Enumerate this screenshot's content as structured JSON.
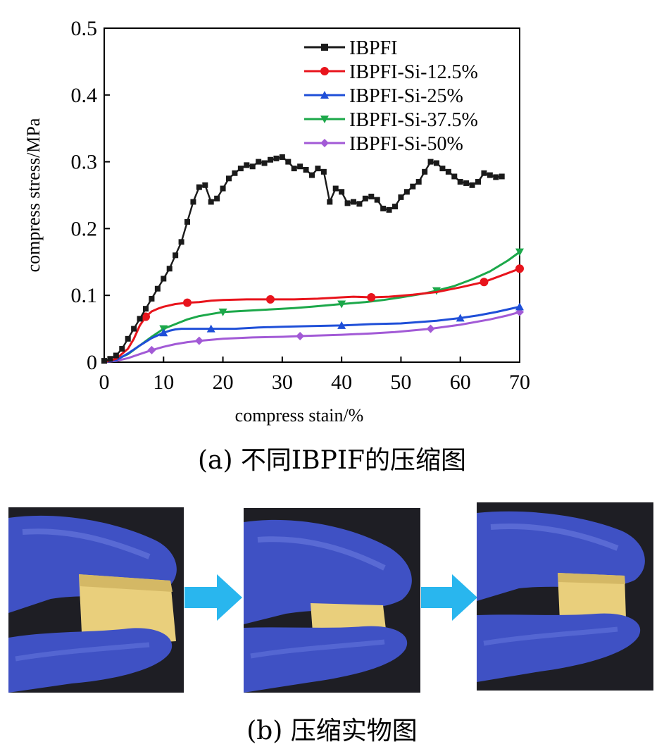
{
  "chart_data": {
    "type": "line",
    "xlabel": "compress stain/%",
    "ylabel": "compress stress/MPa",
    "xlim": [
      0,
      70
    ],
    "ylim": [
      0,
      0.5
    ],
    "xticks": [
      "0",
      "10",
      "20",
      "30",
      "40",
      "50",
      "60",
      "70"
    ],
    "yticks": [
      "0",
      "0.1",
      "0.2",
      "0.3",
      "0.4",
      "0.5"
    ],
    "grid": false,
    "legend_position": "top-right",
    "series": [
      {
        "name": "IBPFI",
        "color": "#1a1a1a",
        "marker": "square",
        "x": [
          0,
          1,
          2,
          3,
          4,
          5,
          6,
          7,
          8,
          9,
          10,
          11,
          12,
          13,
          14,
          15,
          16,
          17,
          18,
          19,
          20,
          21,
          22,
          23,
          24,
          25,
          26,
          27,
          28,
          29,
          30,
          31,
          32,
          33,
          34,
          35,
          36,
          37,
          38,
          39,
          40,
          41,
          42,
          43,
          44,
          45,
          46,
          47,
          48,
          49,
          50,
          51,
          52,
          53,
          54,
          55,
          56,
          57,
          58,
          59,
          60,
          61,
          62,
          63,
          64,
          65,
          66,
          67
        ],
        "y": [
          0.002,
          0.005,
          0.01,
          0.02,
          0.035,
          0.05,
          0.065,
          0.08,
          0.095,
          0.11,
          0.125,
          0.14,
          0.16,
          0.18,
          0.21,
          0.24,
          0.262,
          0.265,
          0.24,
          0.245,
          0.26,
          0.275,
          0.283,
          0.29,
          0.295,
          0.293,
          0.3,
          0.298,
          0.303,
          0.305,
          0.307,
          0.3,
          0.29,
          0.293,
          0.288,
          0.28,
          0.29,
          0.285,
          0.24,
          0.26,
          0.255,
          0.238,
          0.24,
          0.237,
          0.245,
          0.248,
          0.243,
          0.23,
          0.228,
          0.233,
          0.247,
          0.255,
          0.263,
          0.27,
          0.285,
          0.3,
          0.298,
          0.29,
          0.285,
          0.278,
          0.27,
          0.268,
          0.265,
          0.27,
          0.283,
          0.28,
          0.277,
          0.278
        ]
      },
      {
        "name": "IBPFI-Si-12.5%",
        "color": "#e8141c",
        "marker": "circle",
        "x": [
          0,
          2,
          4,
          5,
          6,
          7,
          8,
          9,
          10,
          12,
          14,
          16,
          18,
          20,
          24,
          28,
          32,
          36,
          40,
          42,
          45,
          48,
          52,
          56,
          60,
          64,
          67,
          70
        ],
        "y": [
          0,
          0.005,
          0.02,
          0.035,
          0.055,
          0.068,
          0.076,
          0.08,
          0.083,
          0.087,
          0.089,
          0.09,
          0.092,
          0.093,
          0.094,
          0.094,
          0.094,
          0.095,
          0.097,
          0.098,
          0.097,
          0.098,
          0.101,
          0.105,
          0.112,
          0.12,
          0.13,
          0.14
        ]
      },
      {
        "name": "IBPFI-Si-25%",
        "color": "#1f4fd8",
        "marker": "triangle-up",
        "x": [
          0,
          2,
          4,
          6,
          8,
          10,
          11,
          12,
          13,
          15,
          18,
          22,
          26,
          30,
          35,
          40,
          45,
          50,
          53,
          56,
          60,
          63,
          66,
          68,
          70
        ],
        "y": [
          0,
          0.003,
          0.013,
          0.025,
          0.036,
          0.044,
          0.047,
          0.049,
          0.05,
          0.05,
          0.05,
          0.05,
          0.052,
          0.053,
          0.054,
          0.055,
          0.057,
          0.058,
          0.06,
          0.062,
          0.066,
          0.07,
          0.075,
          0.079,
          0.083
        ]
      },
      {
        "name": "IBPFI-Si-37.5%",
        "color": "#1ca84a",
        "marker": "triangle-down",
        "x": [
          0,
          2,
          4,
          6,
          8,
          10,
          12,
          14,
          16,
          18,
          20,
          24,
          28,
          32,
          35,
          40,
          44,
          47,
          50,
          54,
          56,
          59,
          62,
          65,
          68,
          70
        ],
        "y": [
          0,
          0.004,
          0.012,
          0.025,
          0.038,
          0.05,
          0.057,
          0.064,
          0.069,
          0.072,
          0.075,
          0.077,
          0.079,
          0.081,
          0.083,
          0.087,
          0.09,
          0.093,
          0.097,
          0.103,
          0.107,
          0.114,
          0.124,
          0.136,
          0.152,
          0.165
        ]
      },
      {
        "name": "IBPFI-Si-50%",
        "color": "#a25ad6",
        "marker": "diamond",
        "x": [
          0,
          2,
          4,
          6,
          8,
          10,
          12,
          14,
          16,
          20,
          25,
          30,
          33,
          40,
          45,
          49,
          55,
          60,
          65,
          68,
          70
        ],
        "y": [
          0,
          0.002,
          0.006,
          0.012,
          0.018,
          0.023,
          0.027,
          0.03,
          0.032,
          0.035,
          0.037,
          0.038,
          0.039,
          0.041,
          0.043,
          0.045,
          0.05,
          0.056,
          0.064,
          0.07,
          0.075
        ]
      }
    ]
  },
  "captions": {
    "a": "(a)  不同IBPIF的压缩图",
    "b": "(b)  压缩实物图"
  },
  "colors": {
    "arrow": "#29b6ee",
    "glove": "#3f51c4",
    "foam": "#e9cf7c",
    "photo_bg": "#1e1e24"
  }
}
